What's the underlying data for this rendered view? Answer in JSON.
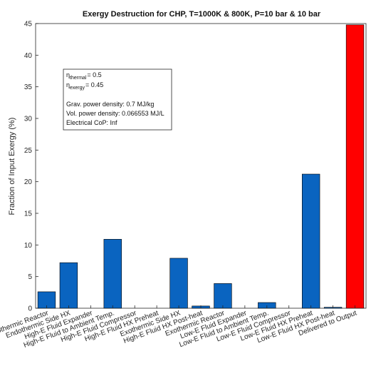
{
  "chart_data": {
    "type": "bar",
    "title": "Exergy Destruction for CHP, T=1000K & 800K, P=10 bar & 10 bar",
    "xlabel": "",
    "ylabel": "Fraction of Input Exergy (%)",
    "ylim": [
      0,
      45
    ],
    "yticks": [
      0,
      5,
      10,
      15,
      20,
      25,
      30,
      35,
      40,
      45
    ],
    "grid": false,
    "categories": [
      "Endothermic Reactor",
      "Endothermic Side HX",
      "High-E Fluid Expander",
      "High-E Fluid to Ambient Temp.",
      "High-E Fluid Compressor",
      "High-E Fluid HX Preheat",
      "Exothermic Side HX",
      "High-E Fluid HX Post-heat",
      "Exothermic Reactor",
      "Low-E Fluid Expander",
      "Low-E Fluid to Ambient Temp.",
      "Low-E Fluid Compressor",
      "Low-E Fluid HX Preheat",
      "Low-E Fluid HX Post-heat",
      "Delivered to Output"
    ],
    "values": [
      2.6,
      7.2,
      0,
      10.9,
      0,
      0,
      7.9,
      0.35,
      3.9,
      0,
      0.9,
      0,
      21.2,
      0.15,
      44.8
    ],
    "colors": [
      "#0a64c0",
      "#0a64c0",
      "#0a64c0",
      "#0a64c0",
      "#0a64c0",
      "#0a64c0",
      "#0a64c0",
      "#0a64c0",
      "#0a64c0",
      "#0a64c0",
      "#0a64c0",
      "#0a64c0",
      "#0a64c0",
      "#0a64c0",
      "#ff0000"
    ],
    "annotation": {
      "eta_thermal_symbol": "η",
      "eta_thermal_sub": "thermal",
      "eta_thermal_value": "= 0.5",
      "eta_exergy_symbol": "η",
      "eta_exergy_sub": "exergy",
      "eta_exergy_value": "= 0.45",
      "grav_density": "Grav. power density: 0.7 MJ/kg",
      "vol_density": "Vol. power density: 0.066553 MJ/L",
      "electrical_cop": "Electrical CoP: Inf"
    }
  }
}
